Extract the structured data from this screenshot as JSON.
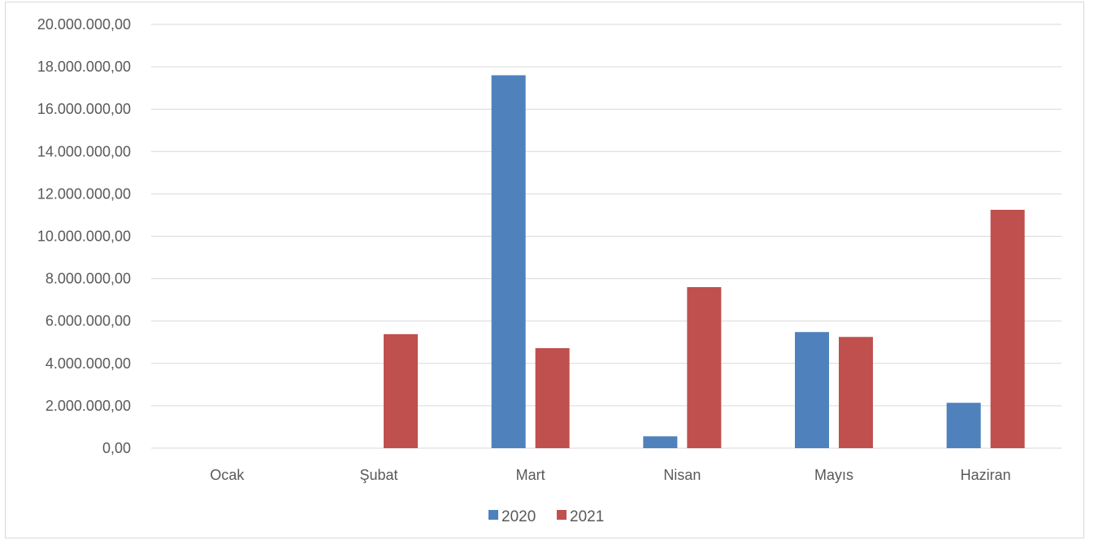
{
  "chart_data": {
    "type": "bar",
    "categories": [
      "Ocak",
      "Şubat",
      "Mart",
      "Nisan",
      "Mayıs",
      "Haziran"
    ],
    "series": [
      {
        "name": "2020",
        "color": "#4f81bd",
        "values": [
          0,
          0,
          17600000,
          560000,
          5480000,
          2140000
        ]
      },
      {
        "name": "2021",
        "color": "#c0504d",
        "values": [
          0,
          5380000,
          4720000,
          7600000,
          5250000,
          11250000
        ]
      }
    ],
    "ylim": [
      0,
      20000000
    ],
    "yticks": [
      0,
      2000000,
      4000000,
      6000000,
      8000000,
      10000000,
      12000000,
      14000000,
      16000000,
      18000000,
      20000000
    ],
    "ytick_labels": [
      "0,00",
      "2.000.000,00",
      "4.000.000,00",
      "6.000.000,00",
      "8.000.000,00",
      "10.000.000,00",
      "12.000.000,00",
      "14.000.000,00",
      "16.000.000,00",
      "18.000.000,00",
      "20.000.000,00"
    ],
    "grid": true,
    "legend": "bottom-center",
    "title": "",
    "xlabel": "",
    "ylabel": ""
  }
}
